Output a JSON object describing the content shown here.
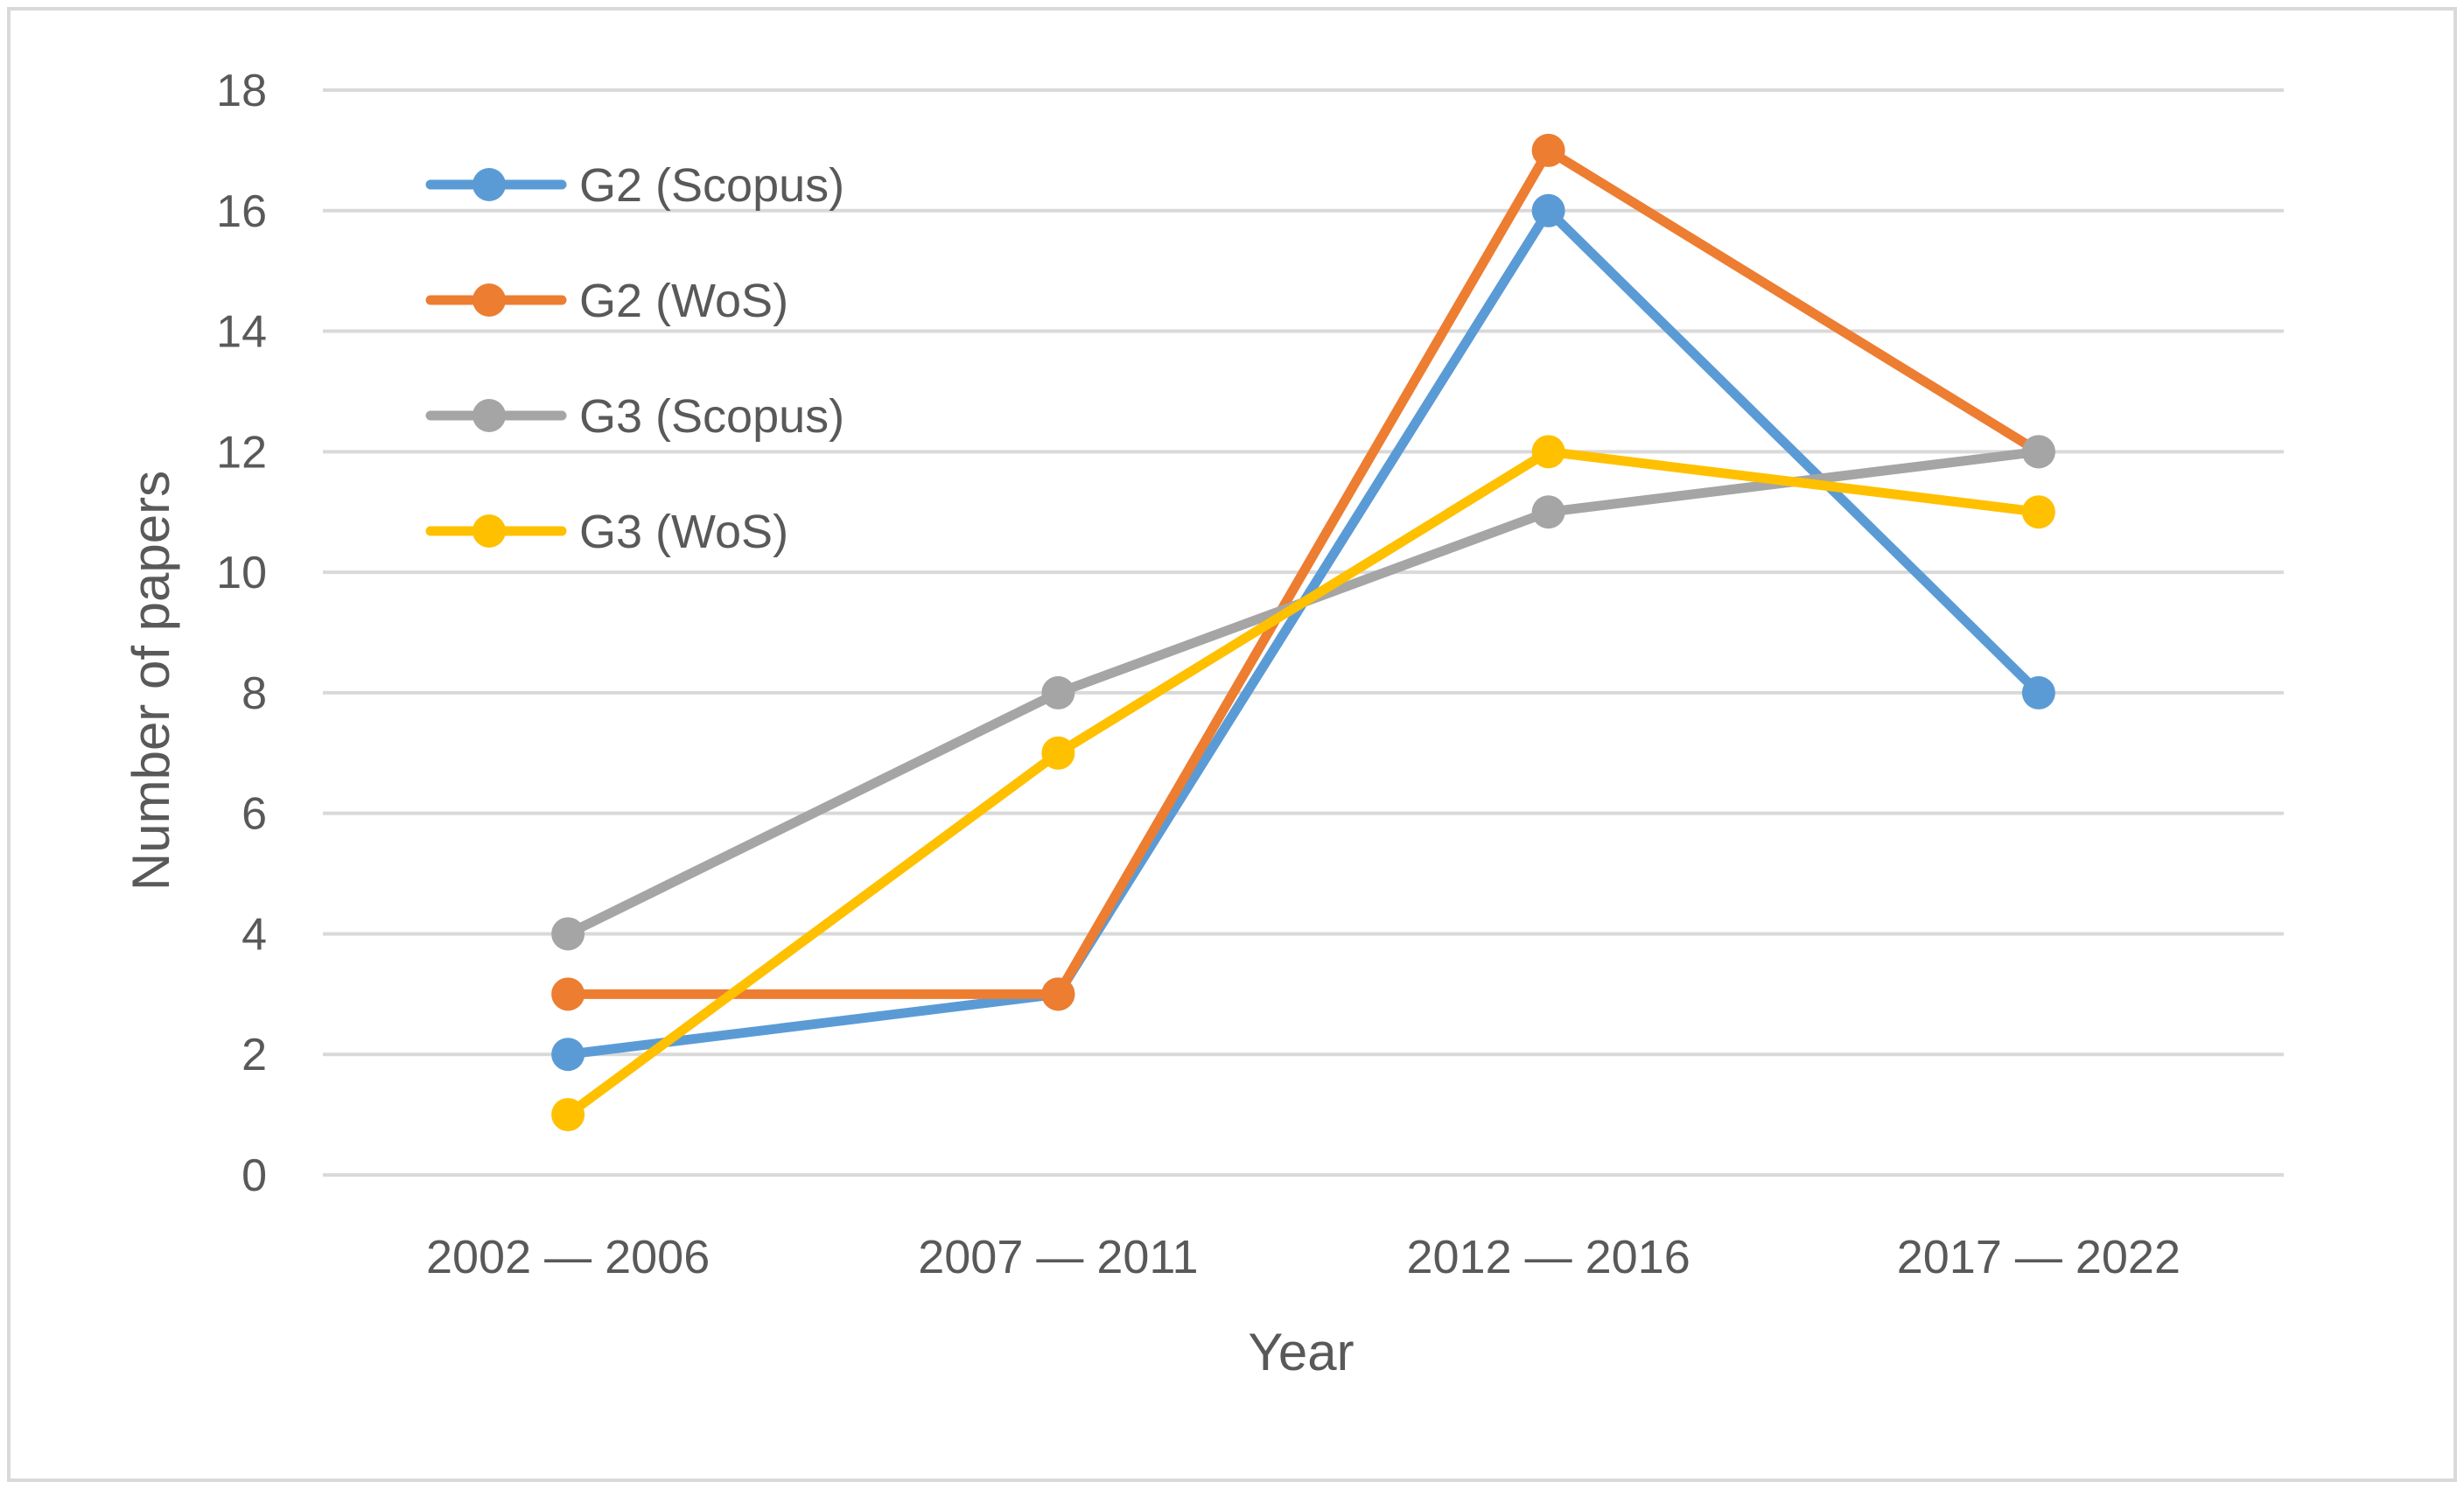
{
  "chart_data": {
    "type": "line",
    "title": "",
    "xlabel": "Year",
    "ylabel": "Number of papers",
    "categories": [
      "2002 — 2006",
      "2007 — 2011",
      "2012 — 2016",
      "2017 — 2022"
    ],
    "ylim": [
      0,
      18
    ],
    "yticks": [
      0,
      2,
      4,
      6,
      8,
      10,
      12,
      14,
      16,
      18
    ],
    "grid": true,
    "legend_position": "top-left",
    "series": [
      {
        "name": "G2 (Scopus)",
        "color": "#5b9bd5",
        "values": [
          2,
          3,
          16,
          8
        ]
      },
      {
        "name": "G2 (WoS)",
        "color": "#ed7d31",
        "values": [
          3,
          3,
          17,
          12
        ]
      },
      {
        "name": "G3 (Scopus)",
        "color": "#a5a5a5",
        "values": [
          4,
          8,
          11,
          12
        ]
      },
      {
        "name": "G3 (WoS)",
        "color": "#ffc000",
        "values": [
          1,
          7,
          12,
          11
        ]
      }
    ]
  }
}
